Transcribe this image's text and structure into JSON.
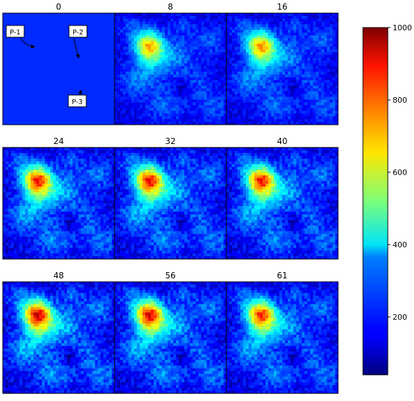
{
  "chart_data": {
    "type": "heatmap",
    "title": "",
    "grid": false,
    "layout": "3x3 small multiples",
    "colormap": "jet",
    "colorbar": {
      "placement": "right",
      "range": [
        40,
        1000
      ],
      "ticks": [
        200,
        400,
        600,
        800,
        1000
      ],
      "tick_labels": [
        "200",
        "400",
        "600",
        "800",
        "1000"
      ]
    },
    "panels": [
      {
        "label": "0",
        "uniform_value": 200
      },
      {
        "label": "8",
        "peak_value": 660
      },
      {
        "label": "16",
        "peak_value": 680
      },
      {
        "label": "24",
        "peak_value": 790
      },
      {
        "label": "32",
        "peak_value": 800
      },
      {
        "label": "40",
        "peak_value": 790
      },
      {
        "label": "48",
        "peak_value": 840
      },
      {
        "label": "56",
        "peak_value": 820
      },
      {
        "label": "61",
        "peak_value": 770
      }
    ],
    "annotations": [
      {
        "label": "P-1",
        "panel": "0"
      },
      {
        "label": "P-2",
        "panel": "0"
      },
      {
        "label": "P-3",
        "panel": "0"
      }
    ]
  }
}
